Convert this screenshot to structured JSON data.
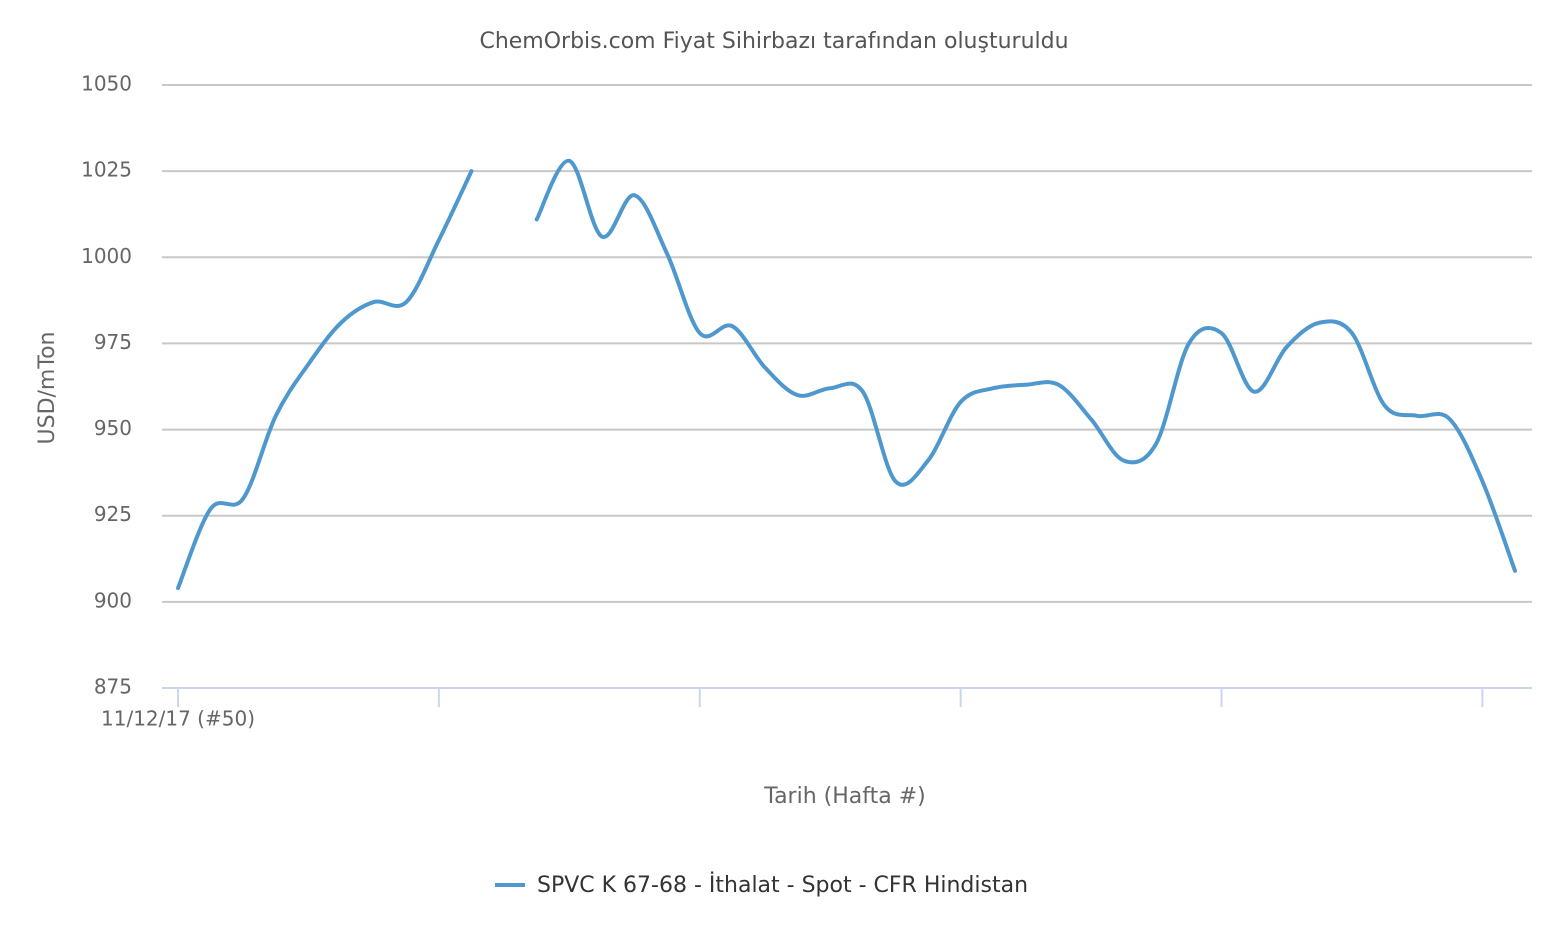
{
  "chart_data": {
    "type": "line",
    "title": "ChemOrbis.com Fiyat Sihirbazı tarafından oluşturuldu",
    "y_label": "USD/mTon",
    "x_label": "Tarih (Hafta #)",
    "categories": [
      "11/12/17 (#50)",
      null,
      null,
      null,
      null,
      null,
      null,
      null,
      null,
      null,
      null,
      null,
      null,
      null,
      null,
      null,
      null,
      null,
      null,
      null,
      null,
      null,
      null,
      null,
      null,
      null,
      null,
      null,
      null,
      null,
      null,
      null,
      null,
      null,
      null,
      null,
      null,
      null,
      null,
      null,
      null,
      null
    ],
    "series": [
      {
        "name": "SPVC K 67-68 - İthalat - Spot - CFR Hindistan",
        "color": "#4f98ce",
        "values": [
          904,
          927,
          930,
          954,
          969,
          981,
          987,
          987,
          1005,
          1025,
          null,
          1011,
          1028,
          1006,
          1018,
          1001,
          978,
          980,
          968,
          960,
          962,
          961,
          935,
          941,
          958,
          962,
          963,
          963,
          953,
          941,
          946,
          975,
          978,
          961,
          974,
          981,
          978,
          957,
          954,
          953,
          935,
          909
        ]
      }
    ],
    "ylim": [
      875,
      1050
    ],
    "yticks": [
      875,
      900,
      925,
      950,
      975,
      1000,
      1025,
      1050
    ],
    "grid": true
  }
}
